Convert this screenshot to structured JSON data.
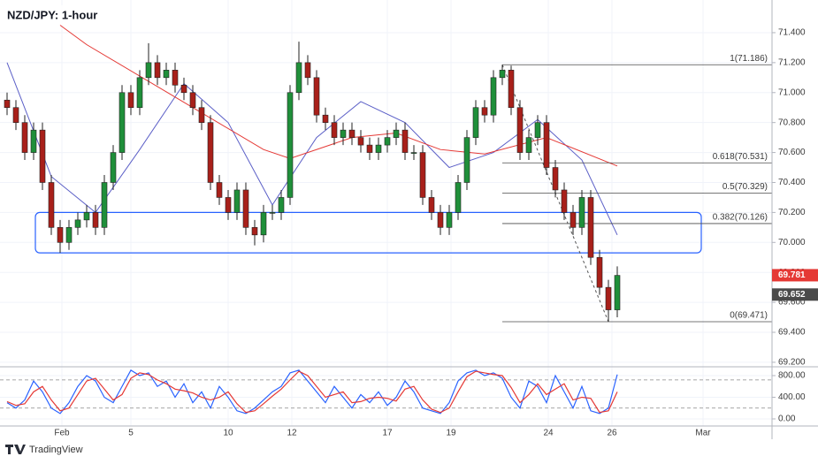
{
  "chart_data": [
    {
      "type": "candlestick",
      "title": "NZD/JPY: 1-hour",
      "xlim": [
        -0.8,
        86.5
      ],
      "xticks": [
        {
          "value": 6.2,
          "label": "Feb"
        },
        {
          "value": 14,
          "label": "5"
        },
        {
          "value": 25,
          "label": "10"
        },
        {
          "value": 32.2,
          "label": "12"
        },
        {
          "value": 43,
          "label": "17"
        },
        {
          "value": 50.2,
          "label": "19"
        },
        {
          "value": 61.2,
          "label": "24"
        },
        {
          "value": 68.4,
          "label": "26"
        },
        {
          "value": 78.7,
          "label": "Mar"
        }
      ],
      "ylim": [
        69.17,
        71.618
      ],
      "yticks": [
        {
          "value": 71.4,
          "label": "71.400"
        },
        {
          "value": 71.2,
          "label": "71.200"
        },
        {
          "value": 71.0,
          "label": "71.000"
        },
        {
          "value": 70.8,
          "label": "70.800"
        },
        {
          "value": 70.6,
          "label": "70.600"
        },
        {
          "value": 70.4,
          "label": "70.400"
        },
        {
          "value": 70.2,
          "label": "70.200"
        },
        {
          "value": 70.0,
          "label": "70.000"
        },
        {
          "value": 69.8,
          "label": "69.800"
        },
        {
          "value": 69.6,
          "label": "69.600"
        },
        {
          "value": 69.4,
          "label": "69.400"
        },
        {
          "value": 69.2,
          "label": "69.200"
        }
      ],
      "up_color": "#1f8f3a",
      "down_color": "#a8201a",
      "open": [
        70.95,
        70.9,
        70.8,
        70.6,
        70.75,
        70.4,
        70.1,
        70.0,
        70.1,
        70.15,
        70.2,
        70.1,
        70.4,
        70.6,
        71.0,
        70.9,
        71.1,
        71.2,
        71.1,
        71.15,
        71.05,
        71.0,
        70.9,
        70.8,
        70.4,
        70.3,
        70.2,
        70.35,
        70.1,
        70.05,
        70.2,
        70.2,
        70.3,
        71.0,
        71.2,
        71.1,
        70.85,
        70.8,
        70.7,
        70.75,
        70.7,
        70.65,
        70.6,
        70.65,
        70.7,
        70.75,
        70.6,
        70.6,
        70.3,
        70.2,
        70.1,
        70.2,
        70.4,
        70.7,
        70.9,
        70.85,
        71.1,
        71.15,
        70.9,
        70.6,
        70.7,
        70.8,
        70.5,
        70.35,
        70.2,
        70.1,
        70.3,
        69.9,
        69.7,
        69.55
      ],
      "high": [
        71.0,
        70.95,
        70.85,
        70.8,
        70.8,
        70.45,
        70.15,
        70.15,
        70.2,
        70.25,
        70.25,
        70.45,
        70.65,
        71.05,
        71.05,
        71.15,
        71.33,
        71.25,
        71.2,
        71.2,
        71.1,
        71.05,
        70.95,
        70.85,
        70.45,
        70.35,
        70.4,
        70.4,
        70.15,
        70.25,
        70.25,
        70.35,
        71.05,
        71.34,
        71.25,
        71.15,
        70.9,
        70.85,
        70.8,
        70.8,
        70.75,
        70.7,
        70.7,
        70.75,
        70.8,
        70.8,
        70.65,
        70.65,
        70.35,
        70.25,
        70.25,
        70.45,
        70.75,
        70.95,
        70.95,
        71.15,
        71.186,
        71.18,
        70.95,
        70.75,
        70.85,
        70.85,
        70.55,
        70.4,
        70.25,
        70.35,
        70.35,
        69.95,
        69.75,
        69.84
      ],
      "low": [
        70.85,
        70.75,
        70.55,
        70.55,
        70.35,
        70.05,
        69.93,
        69.95,
        70.05,
        70.1,
        70.05,
        70.05,
        70.35,
        70.55,
        70.85,
        70.85,
        71.05,
        71.05,
        71.05,
        71.0,
        70.95,
        70.85,
        70.75,
        70.35,
        70.25,
        70.15,
        70.15,
        70.05,
        69.98,
        70.0,
        70.15,
        70.15,
        70.25,
        70.95,
        71.05,
        70.8,
        70.75,
        70.65,
        70.65,
        70.65,
        70.6,
        70.55,
        70.55,
        70.6,
        70.65,
        70.55,
        70.55,
        70.25,
        70.15,
        70.05,
        70.05,
        70.15,
        70.35,
        70.65,
        70.8,
        70.8,
        71.05,
        70.85,
        70.55,
        70.55,
        70.65,
        70.45,
        70.3,
        70.15,
        70.05,
        70.05,
        69.85,
        69.65,
        69.471,
        69.5
      ],
      "close": [
        70.9,
        70.8,
        70.6,
        70.75,
        70.4,
        70.1,
        70.0,
        70.1,
        70.15,
        70.2,
        70.1,
        70.4,
        70.6,
        71.0,
        70.9,
        71.1,
        71.2,
        71.1,
        71.15,
        71.05,
        71.0,
        70.9,
        70.8,
        70.4,
        70.3,
        70.2,
        70.35,
        70.1,
        70.05,
        70.2,
        70.2,
        70.3,
        71.0,
        71.2,
        71.1,
        70.85,
        70.8,
        70.7,
        70.75,
        70.7,
        70.65,
        70.6,
        70.65,
        70.7,
        70.75,
        70.6,
        70.6,
        70.3,
        70.2,
        70.1,
        70.2,
        70.4,
        70.7,
        70.9,
        70.85,
        71.1,
        71.15,
        70.9,
        70.6,
        70.7,
        70.8,
        70.5,
        70.35,
        70.2,
        70.1,
        70.3,
        69.9,
        69.7,
        69.55,
        69.78
      ],
      "lines": [
        {
          "color": "#5b5fc7",
          "x": [
            0,
            5,
            10,
            15,
            20,
            25,
            30,
            35,
            40,
            45,
            50,
            55,
            60,
            65,
            69
          ],
          "values": [
            71.2,
            70.44,
            70.2,
            70.62,
            71.06,
            70.8,
            70.25,
            70.7,
            70.94,
            70.8,
            70.5,
            70.6,
            70.82,
            70.55,
            70.05
          ]
        },
        {
          "color": "#e53935",
          "x": [
            6,
            9,
            19,
            29,
            32,
            39,
            44,
            49,
            54,
            61,
            69
          ],
          "values": [
            71.45,
            71.32,
            70.97,
            70.62,
            70.56,
            70.7,
            70.73,
            70.62,
            70.59,
            70.7,
            70.51
          ]
        }
      ],
      "zone": {
        "x": [
          3.2,
          78.5
        ],
        "y": [
          69.93,
          70.2
        ],
        "color": "#2962ff"
      },
      "fib": {
        "start": 56,
        "levels": [
          {
            "value": 71.186,
            "label": "1(71.186)"
          },
          {
            "value": 70.531,
            "label": "0.618(70.531)"
          },
          {
            "value": 70.329,
            "label": "0.5(70.329)"
          },
          {
            "value": 70.126,
            "label": "0.382(70.126)"
          },
          {
            "value": 69.471,
            "label": "0(69.471)"
          }
        ]
      },
      "trend_line": {
        "x": [
          56,
          68
        ],
        "values": [
          71.186,
          69.471
        ]
      },
      "price_tags": [
        {
          "value": 69.781,
          "color": "#e53935"
        },
        {
          "value": 69.652,
          "color": "#4a4a4a"
        }
      ]
    },
    {
      "type": "line",
      "ylim": [
        -131,
        963
      ],
      "yticks": [
        {
          "value": 800,
          "label": "800.00"
        },
        {
          "value": 400,
          "label": "400.00"
        },
        {
          "value": 0,
          "label": "0.00"
        }
      ],
      "levels": [
        720,
        200
      ],
      "series": [
        {
          "color": "#2962ff",
          "values": [
            300,
            200,
            350,
            700,
            500,
            200,
            100,
            300,
            600,
            800,
            700,
            400,
            300,
            600,
            900,
            800,
            850,
            600,
            700,
            400,
            650,
            300,
            500,
            200,
            600,
            400,
            150,
            100,
            200,
            350,
            500,
            600,
            850,
            900,
            700,
            500,
            300,
            600,
            400,
            200,
            450,
            300,
            500,
            250,
            400,
            700,
            500,
            200,
            150,
            100,
            300,
            700,
            850,
            900,
            800,
            850,
            750,
            400,
            200,
            700,
            600,
            300,
            800,
            500,
            200,
            600,
            150,
            100,
            200,
            820
          ]
        },
        {
          "color": "#e53935",
          "values": [
            320,
            250,
            280,
            500,
            600,
            350,
            150,
            200,
            450,
            700,
            750,
            550,
            350,
            450,
            750,
            850,
            820,
            720,
            650,
            550,
            520,
            480,
            400,
            350,
            400,
            500,
            280,
            120,
            150,
            280,
            420,
            550,
            720,
            880,
            800,
            600,
            400,
            450,
            500,
            300,
            320,
            380,
            400,
            380,
            330,
            550,
            600,
            350,
            180,
            120,
            200,
            500,
            780,
            880,
            850,
            820,
            800,
            580,
            300,
            450,
            650,
            450,
            550,
            650,
            350,
            400,
            380,
            120,
            150,
            500
          ]
        }
      ]
    }
  ],
  "brand": "TradingView"
}
